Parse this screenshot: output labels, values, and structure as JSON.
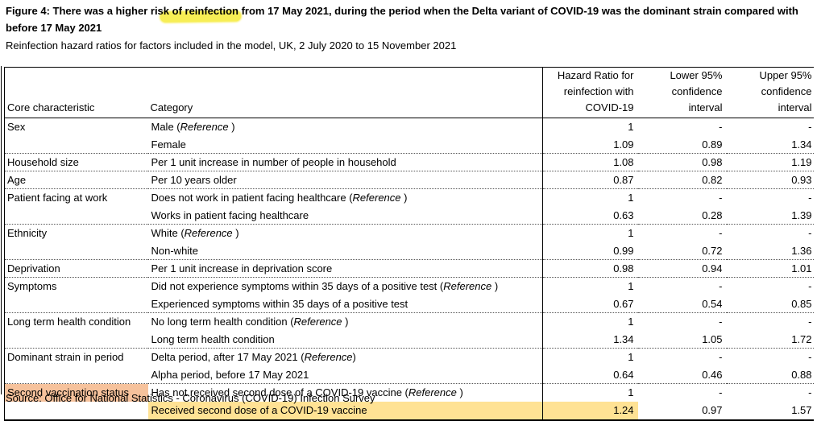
{
  "page": {
    "title_line1": "Figure 4: There was a higher risk of reinfection from 17 May 2021, during the period when the Delta variant of COVID-19 was the dominant strain compared with",
    "title_line2": "before 17 May 2021",
    "subtitle": "Reinfection hazard ratios for factors included in the model, UK, 2 July 2020 to 15 November 2021",
    "source": "Source: Office for National Statistics - Coronavirus (COVID-19) Infection Survey"
  },
  "colors": {
    "highlighter_yellow": "#f7ee55",
    "cell_orange": "#f6c29c",
    "cell_gold": "#ffe294"
  },
  "table": {
    "headers": {
      "characteristic": "Core characteristic",
      "category": "Category",
      "hazard_ratio": "Hazard Ratio for reinfection with COVID-19",
      "lower_ci": "Lower 95% confidence interval",
      "upper_ci": "Upper 95% confidence interval"
    },
    "rows": [
      {
        "characteristic": "Sex",
        "category": "Male (Reference )",
        "hr": "1",
        "lower": "-",
        "upper": "-"
      },
      {
        "characteristic": "",
        "category": "Female",
        "hr": "1.09",
        "lower": "0.89",
        "upper": "1.34",
        "group_end": true
      },
      {
        "characteristic": "Household size",
        "category": "Per 1 unit increase in number of people in household",
        "hr": "1.08",
        "lower": "0.98",
        "upper": "1.19",
        "group_end": true
      },
      {
        "characteristic": "Age",
        "category": "Per 10 years older",
        "hr": "0.87",
        "lower": "0.82",
        "upper": "0.93",
        "group_end": true
      },
      {
        "characteristic": "Patient facing at work",
        "category": "Does not work in patient facing healthcare (Reference )",
        "hr": "1",
        "lower": "-",
        "upper": "-"
      },
      {
        "characteristic": "",
        "category": "Works in patient facing healthcare",
        "hr": "0.63",
        "lower": "0.28",
        "upper": "1.39",
        "group_end": true
      },
      {
        "characteristic": "Ethnicity",
        "category": "White (Reference )",
        "hr": "1",
        "lower": "-",
        "upper": "-"
      },
      {
        "characteristic": "",
        "category": "Non-white",
        "hr": "0.99",
        "lower": "0.72",
        "upper": "1.36",
        "group_end": true
      },
      {
        "characteristic": "Deprivation",
        "category": "Per 1 unit increase in deprivation score",
        "hr": "0.98",
        "lower": "0.94",
        "upper": "1.01",
        "group_end": true
      },
      {
        "characteristic": "Symptoms",
        "category": "Did not experience symptoms within 35 days of a positive test (Reference )",
        "hr": "1",
        "lower": "-",
        "upper": "-"
      },
      {
        "characteristic": "",
        "category": "Experienced symptoms within 35 days of a positive test",
        "hr": "0.67",
        "lower": "0.54",
        "upper": "0.85",
        "group_end": true
      },
      {
        "characteristic": "Long term health condition",
        "category": "No long term health condition (Reference )",
        "hr": "1",
        "lower": "-",
        "upper": "-"
      },
      {
        "characteristic": "",
        "category": "Long term health condition",
        "hr": "1.34",
        "lower": "1.05",
        "upper": "1.72",
        "group_end": true
      },
      {
        "characteristic": "Dominant strain in period",
        "category": "Delta period, after 17 May 2021  (Reference)",
        "hr": "1",
        "lower": "-",
        "upper": "-"
      },
      {
        "characteristic": "",
        "category": "Alpha period, before 17 May 2021",
        "hr": "0.64",
        "lower": "0.46",
        "upper": "0.88",
        "group_end": true
      },
      {
        "characteristic": "Second vaccination status",
        "category": "Has not received second dose of a COVID-19 vaccine (Reference )",
        "hr": "1",
        "lower": "-",
        "upper": "-",
        "char_highlight": "orange"
      },
      {
        "characteristic": "",
        "category": "Received second dose of a COVID-19 vaccine",
        "hr": "1.24",
        "lower": "0.97",
        "upper": "1.57",
        "cat_highlight": "gold",
        "hr_highlight": "gold",
        "hr_bold": true
      }
    ]
  }
}
